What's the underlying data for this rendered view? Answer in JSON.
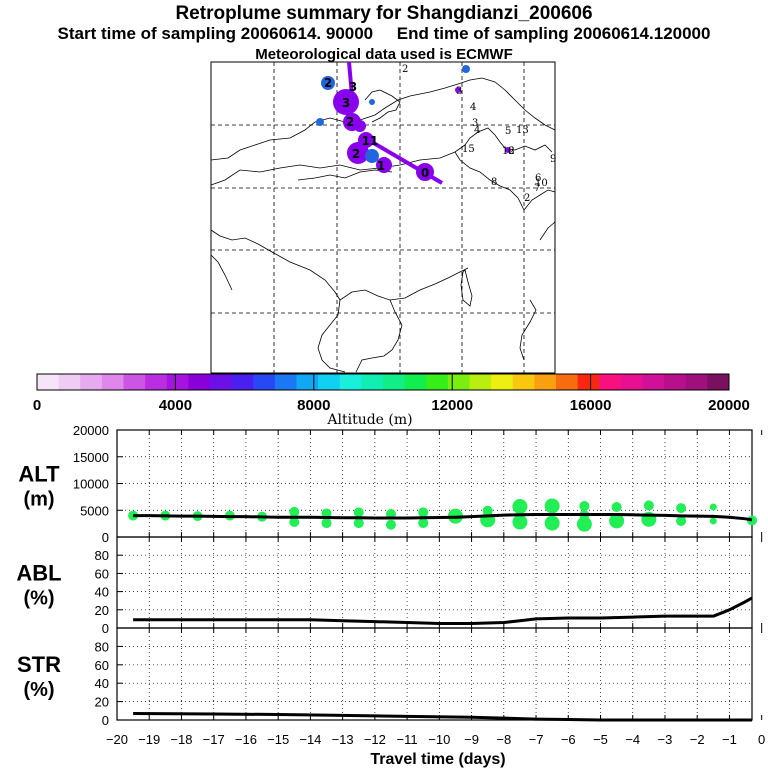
{
  "header": {
    "title": "Retroplume summary for Shangdianzi_200606",
    "sampling": "Start time of sampling 20060614. 90000     End time of sampling 20060614.120000",
    "met": "Meteorological data used is ECMWF"
  },
  "colors": {
    "plume": "#8800ee",
    "plume_dark": "#6a00cc",
    "alt_dot": "#22ee55",
    "line": "#000000",
    "map_line": "#000000"
  },
  "map": {
    "station_numbers": [
      "0",
      "1",
      "2",
      "3",
      "11",
      "2",
      "3",
      "2"
    ],
    "cluster_labels": [
      "2",
      "3",
      "4",
      "3",
      "4",
      "5",
      "13",
      "15",
      "12",
      "6",
      "9",
      "10",
      "8",
      "7",
      "2",
      "6"
    ]
  },
  "colorbar": {
    "tick_labels": [
      "0",
      "4000",
      "8000",
      "12000",
      "16000",
      "20000"
    ],
    "label": "Altitude (m)",
    "colors": [
      "#f6e4f8",
      "#efccf4",
      "#e6aaef",
      "#dd88ea",
      "#cc55e4",
      "#b92ee0",
      "#a414dc",
      "#8a00da",
      "#6d10e8",
      "#4a20f0",
      "#2848f4",
      "#1a78f2",
      "#10a8f4",
      "#10d0f4",
      "#1aeedc",
      "#10eeb4",
      "#10ee88",
      "#10ee50",
      "#38ee18",
      "#7aee10",
      "#b8ee10",
      "#eeee10",
      "#f8c810",
      "#f8a010",
      "#f86c10",
      "#f82810",
      "#f81080",
      "#e81090",
      "#d01098",
      "#b8108c",
      "#a0107c",
      "#7a1060"
    ]
  },
  "chart_data": [
    {
      "type": "line",
      "panel": "ALT",
      "ylabel": "ALT\n(m)",
      "ylim": [
        0,
        20000
      ],
      "yticks": [
        0,
        5000,
        10000,
        15000,
        20000
      ],
      "x": [
        -19.5,
        -19,
        -18.5,
        -18,
        -17.5,
        -17,
        -16.5,
        -16,
        -15.5,
        -15,
        -14.5,
        -14,
        -13.5,
        -13,
        -12.5,
        -12,
        -11.5,
        -11,
        -10.5,
        -10,
        -9.5,
        -9,
        -8.5,
        -8,
        -7.5,
        -7,
        -6.5,
        -6,
        -5.5,
        -5,
        -4.5,
        -4,
        -3.5,
        -3,
        -2.5,
        -2,
        -1.5,
        -1,
        -0.5,
        -0.3
      ],
      "values": [
        4000,
        4000,
        3950,
        3900,
        3900,
        3850,
        3800,
        3800,
        3750,
        3700,
        3700,
        3700,
        3650,
        3600,
        3600,
        3550,
        3550,
        3550,
        3600,
        3650,
        3700,
        3800,
        3950,
        4100,
        4150,
        4200,
        4200,
        4200,
        4200,
        4200,
        4200,
        4150,
        4100,
        4050,
        3950,
        3900,
        3850,
        3700,
        3400,
        3200
      ],
      "dots": [
        {
          "x": -19.5,
          "y": 4000,
          "size": 1
        },
        {
          "x": -18.5,
          "y": 4000,
          "size": 1
        },
        {
          "x": -17.5,
          "y": 3900,
          "size": 1
        },
        {
          "x": -16.5,
          "y": 4000,
          "size": 1
        },
        {
          "x": -15.5,
          "y": 3800,
          "size": 1
        },
        {
          "x": -14.5,
          "y": 4700,
          "size": 1
        },
        {
          "x": -14.5,
          "y": 2800,
          "size": 1
        },
        {
          "x": -13.5,
          "y": 4400,
          "size": 1
        },
        {
          "x": -13.5,
          "y": 2600,
          "size": 1
        },
        {
          "x": -12.5,
          "y": 4600,
          "size": 1
        },
        {
          "x": -12.5,
          "y": 2600,
          "size": 1
        },
        {
          "x": -11.5,
          "y": 4300,
          "size": 1
        },
        {
          "x": -11.5,
          "y": 2300,
          "size": 1
        },
        {
          "x": -10.5,
          "y": 4600,
          "size": 1
        },
        {
          "x": -10.5,
          "y": 2600,
          "size": 1
        },
        {
          "x": -9.5,
          "y": 3900,
          "size": 2
        },
        {
          "x": -8.5,
          "y": 4900,
          "size": 1
        },
        {
          "x": -8.5,
          "y": 3200,
          "size": 2
        },
        {
          "x": -7.5,
          "y": 5700,
          "size": 2
        },
        {
          "x": -7.5,
          "y": 2800,
          "size": 2
        },
        {
          "x": -6.5,
          "y": 5800,
          "size": 2
        },
        {
          "x": -6.5,
          "y": 2600,
          "size": 2
        },
        {
          "x": -5.5,
          "y": 5800,
          "size": 1
        },
        {
          "x": -5.5,
          "y": 4100,
          "size": 1
        },
        {
          "x": -5.5,
          "y": 2400,
          "size": 2
        },
        {
          "x": -4.5,
          "y": 5600,
          "size": 1
        },
        {
          "x": -4.5,
          "y": 3000,
          "size": 2
        },
        {
          "x": -3.5,
          "y": 5900,
          "size": 1
        },
        {
          "x": -3.5,
          "y": 3300,
          "size": 2
        },
        {
          "x": -2.5,
          "y": 5400,
          "size": 1
        },
        {
          "x": -2.5,
          "y": 3000,
          "size": 1
        },
        {
          "x": -1.5,
          "y": 5600,
          "size": 0
        },
        {
          "x": -1.5,
          "y": 3000,
          "size": 0
        },
        {
          "x": -0.3,
          "y": 3100,
          "size": 1
        }
      ]
    },
    {
      "type": "line",
      "panel": "ABL",
      "ylabel": "ABL\n(%)",
      "ylim": [
        0,
        100
      ],
      "yticks": [
        0,
        20,
        40,
        60,
        80
      ],
      "x": [
        -19.5,
        -16,
        -14,
        -13,
        -12,
        -11,
        -10,
        -9,
        -8,
        -7.5,
        -7,
        -6,
        -5,
        -4,
        -3,
        -2,
        -1.5,
        -1,
        -0.5,
        -0.3
      ],
      "values": [
        9,
        9,
        9,
        8,
        7,
        6,
        5,
        5,
        6,
        8,
        10,
        11,
        11,
        12,
        13,
        13,
        13,
        20,
        29,
        33
      ]
    },
    {
      "type": "line",
      "panel": "STR",
      "ylabel": "STR\n(%)",
      "ylim": [
        0,
        100
      ],
      "yticks": [
        0,
        20,
        40,
        60,
        80
      ],
      "x": [
        -19.5,
        -17,
        -15,
        -13,
        -11,
        -9,
        -8,
        -7,
        -6,
        -5,
        -4,
        -2,
        -1,
        -0.3
      ],
      "values": [
        7,
        6.5,
        6,
        5,
        4,
        3,
        2,
        1,
        0.5,
        0,
        0,
        0,
        0,
        0
      ],
      "xlabel": "Travel time (days)",
      "xlim": [
        -20,
        -0.3
      ],
      "xticks": [
        -20,
        -19,
        -18,
        -17,
        -16,
        -15,
        -14,
        -13,
        -12,
        -11,
        -10,
        -9,
        -8,
        -7,
        -6,
        -5,
        -4,
        -3,
        -2,
        -1,
        0
      ],
      "xtick_labels": [
        "−20",
        "−19",
        "−18",
        "−17",
        "−16",
        "−15",
        "−14",
        "−13",
        "−12",
        "−11",
        "−10",
        "−9",
        "−8",
        "−7",
        "−6",
        "−5",
        "−4",
        "−3",
        "−2",
        "−1",
        "0"
      ]
    }
  ]
}
